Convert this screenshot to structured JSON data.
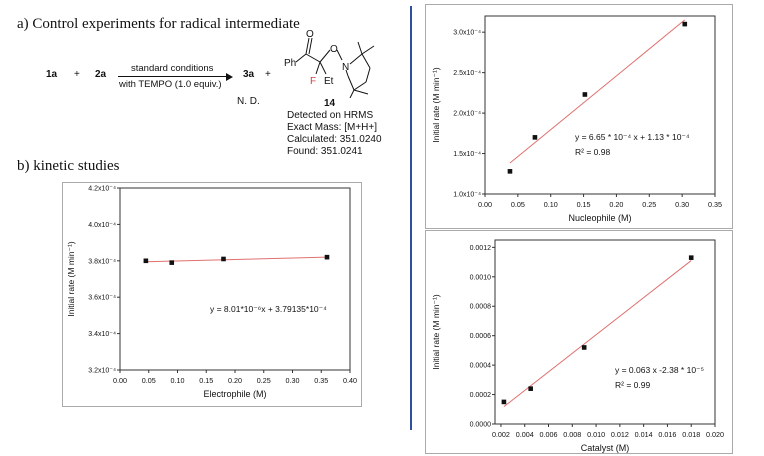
{
  "section_a": {
    "title": "a) Control experiments for radical intermediate",
    "reactant1": "1a",
    "plus1": "+",
    "reactant2": "2a",
    "arrow_top": "standard conditions",
    "arrow_bottom": "with TEMPO (1.0 equiv.)",
    "product": "3a",
    "product_note": "N. D.",
    "plus2": "+",
    "compound_number": "14",
    "struct_labels": {
      "ph": "Ph",
      "o_carbonyl": "O",
      "o_ether": "O",
      "n": "N",
      "f": "F",
      "et": "Et"
    },
    "hrms_lines": [
      "Detected on HRMS",
      "Exact Mass: [M+H+]",
      "Calculated: 351.0240",
      "Found: 351.0241"
    ]
  },
  "section_b": {
    "title": "b) kinetic studies"
  },
  "chart_data": [
    {
      "type": "scatter",
      "id": "electrophile",
      "xlabel": "Electrophile (M)",
      "ylabel": "Initial rate (M min⁻¹)",
      "xlim": [
        0.0,
        0.4
      ],
      "ylim": [
        0.00032,
        0.00042
      ],
      "x_ticks": [
        0.0,
        0.05,
        0.1,
        0.15,
        0.2,
        0.25,
        0.3,
        0.35,
        0.4
      ],
      "x_tick_labels": [
        "0.00",
        "0.05",
        "0.10",
        "0.15",
        "0.20",
        "0.25",
        "0.30",
        "0.35",
        "0.40"
      ],
      "y_ticks": [
        0.00032,
        0.00034,
        0.00036,
        0.00038,
        0.0004,
        0.00042
      ],
      "y_tick_labels": [
        "3.2x10⁻⁴",
        "3.4x10⁻⁴",
        "3.6x10⁻⁴",
        "3.8x10⁻⁴",
        "4.0x10⁻⁴",
        "4.2x10⁻⁴"
      ],
      "points": {
        "x": [
          0.045,
          0.09,
          0.18,
          0.36
        ],
        "y": [
          0.00038,
          0.000379,
          0.000381,
          0.000382
        ]
      },
      "fit": {
        "slope": 8.01e-06,
        "intercept": 0.000379135
      },
      "equation": "y = 8.01*10⁻⁶x + 3.79135*10⁻⁴",
      "r2": ""
    },
    {
      "type": "scatter",
      "id": "nucleophile",
      "xlabel": "Nucleophile (M)",
      "ylabel": "Initial rate (M min⁻¹)",
      "xlim": [
        0.0,
        0.35
      ],
      "ylim": [
        0.0001,
        0.00032
      ],
      "x_ticks": [
        0.0,
        0.05,
        0.1,
        0.15,
        0.2,
        0.25,
        0.3,
        0.35
      ],
      "x_tick_labels": [
        "0.00",
        "0.05",
        "0.10",
        "0.15",
        "0.20",
        "0.25",
        "0.30",
        "0.35"
      ],
      "y_ticks": [
        0.0001,
        0.00015,
        0.0002,
        0.00025,
        0.0003
      ],
      "y_tick_labels": [
        "1.0x10⁻⁴",
        "1.5x10⁻⁴",
        "2.0x10⁻⁴",
        "2.5x10⁻⁴",
        "3.0x10⁻⁴"
      ],
      "points": {
        "x": [
          0.038,
          0.076,
          0.152,
          0.304
        ],
        "y": [
          0.000128,
          0.00017,
          0.000223,
          0.00031
        ]
      },
      "fit": {
        "slope": 0.000665,
        "intercept": 0.000113
      },
      "equation": "y = 6.65 * 10⁻⁴ x + 1.13 * 10⁻⁴",
      "r2": "R² = 0.98"
    },
    {
      "type": "scatter",
      "id": "catalyst",
      "xlabel": "Catalyst (M)",
      "ylabel": "Initial rate (M min⁻¹)",
      "xlim": [
        0.0015,
        0.02
      ],
      "ylim": [
        0.0,
        0.00125
      ],
      "x_ticks": [
        0.002,
        0.004,
        0.006,
        0.008,
        0.01,
        0.012,
        0.014,
        0.016,
        0.018,
        0.02
      ],
      "x_tick_labels": [
        "0.002",
        "0.004",
        "0.006",
        "0.008",
        "0.010",
        "0.012",
        "0.014",
        "0.016",
        "0.018",
        "0.020"
      ],
      "y_ticks": [
        0.0,
        0.0002,
        0.0004,
        0.0006,
        0.0008,
        0.001,
        0.0012
      ],
      "y_tick_labels": [
        "0.0000",
        "0.0002",
        "0.0004",
        "0.0006",
        "0.0008",
        "0.0010",
        "0.0012"
      ],
      "points": {
        "x": [
          0.00225,
          0.0045,
          0.009,
          0.018
        ],
        "y": [
          0.00015,
          0.00024,
          0.00052,
          0.00113
        ]
      },
      "fit": {
        "slope": 0.063,
        "intercept": -2.38e-05
      },
      "equation": "y = 0.063 x -2.38 * 10⁻⁵",
      "r2": "R² = 0.99"
    }
  ],
  "colors": {
    "fit_line": "#e07070",
    "marker": "#111111",
    "divider": "#2f4f9f",
    "frame": "#aaaaaa"
  }
}
